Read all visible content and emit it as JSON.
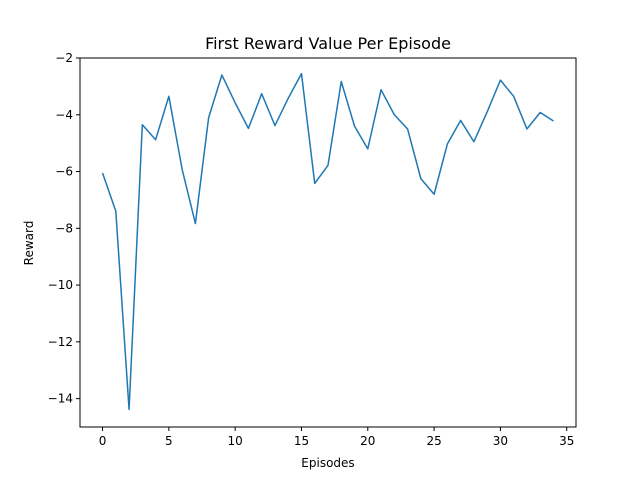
{
  "chart_data": {
    "type": "line",
    "title": "First Reward Value Per Episode",
    "xlabel": "Episodes",
    "ylabel": "Reward",
    "xlim": [
      -1.7,
      35.7
    ],
    "ylim": [
      -15.0,
      -2.0
    ],
    "xticks": [
      0,
      5,
      10,
      15,
      20,
      25,
      30,
      35
    ],
    "yticks": [
      -14,
      -12,
      -10,
      -8,
      -6,
      -4,
      -2
    ],
    "grid": false,
    "series": [
      {
        "color": "#1f77b4",
        "x": [
          0,
          1,
          2,
          3,
          4,
          5,
          6,
          7,
          8,
          9,
          10,
          11,
          12,
          13,
          14,
          15,
          16,
          17,
          18,
          19,
          20,
          21,
          22,
          23,
          24,
          25,
          26,
          27,
          28,
          29,
          30,
          31,
          32,
          33,
          34
        ],
        "y": [
          -6.05,
          -7.4,
          -14.38,
          -4.35,
          -4.88,
          -3.35,
          -5.92,
          -7.83,
          -4.1,
          -2.6,
          -3.58,
          -4.48,
          -3.26,
          -4.38,
          -3.42,
          -2.55,
          -6.42,
          -5.78,
          -2.83,
          -4.4,
          -5.2,
          -3.12,
          -4.0,
          -4.5,
          -6.25,
          -6.8,
          -5.03,
          -4.2,
          -4.95,
          -3.9,
          -2.78,
          -3.35,
          -4.5,
          -3.92,
          -4.22
        ]
      }
    ]
  }
}
